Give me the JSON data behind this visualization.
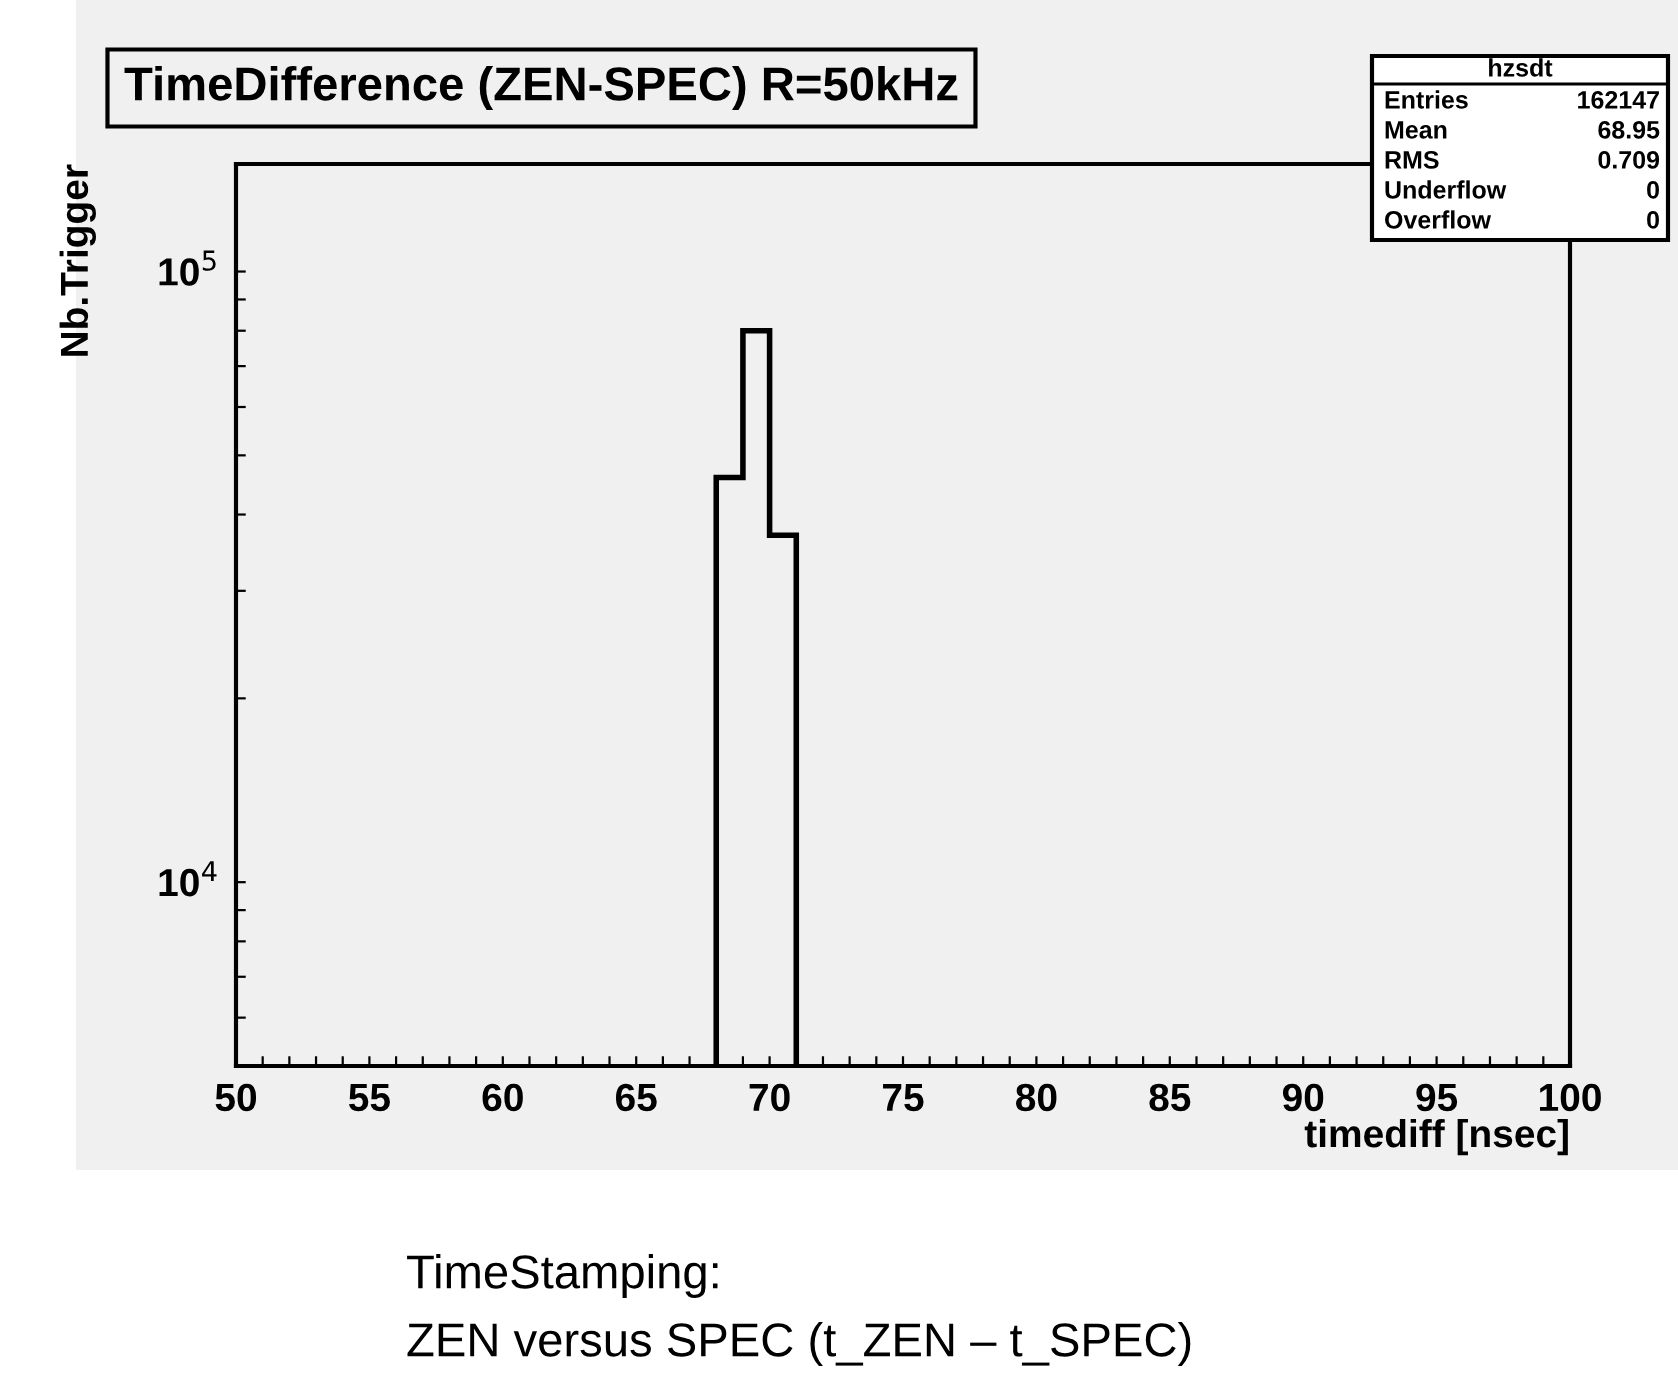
{
  "chart_data": {
    "type": "histogram",
    "title": "TimeDifference (ZEN-SPEC) R=50kHz",
    "xlabel": "timediff [nsec]",
    "ylabel": "Nb.Trigger",
    "bins": [
      68,
      69,
      70,
      71
    ],
    "values": [
      46000,
      80000,
      37000
    ],
    "color": "#000000",
    "log": "y",
    "grid": false,
    "xlim": [
      50,
      100
    ],
    "ylim": [
      5000,
      150000
    ],
    "xticks": [
      50,
      {
        "value": 51,
        "label": null
      },
      {
        "value": 52,
        "label": null
      },
      {
        "value": 53,
        "label": null
      },
      {
        "value": 54,
        "label": null
      },
      55,
      {
        "value": 56,
        "label": null
      },
      {
        "value": 57,
        "label": null
      },
      {
        "value": 58,
        "label": null
      },
      {
        "value": 59,
        "label": null
      },
      60,
      {
        "value": 61,
        "label": null
      },
      {
        "value": 62,
        "label": null
      },
      {
        "value": 63,
        "label": null
      },
      {
        "value": 64,
        "label": null
      },
      65,
      {
        "value": 66,
        "label": null
      },
      {
        "value": 67,
        "label": null
      },
      {
        "value": 68,
        "label": null
      },
      {
        "value": 69,
        "label": null
      },
      70,
      {
        "value": 71,
        "label": null
      },
      {
        "value": 72,
        "label": null
      },
      {
        "value": 73,
        "label": null
      },
      {
        "value": 74,
        "label": null
      },
      75,
      {
        "value": 76,
        "label": null
      },
      {
        "value": 77,
        "label": null
      },
      {
        "value": 78,
        "label": null
      },
      {
        "value": 79,
        "label": null
      },
      80,
      {
        "value": 81,
        "label": null
      },
      {
        "value": 82,
        "label": null
      },
      {
        "value": 83,
        "label": null
      },
      {
        "value": 84,
        "label": null
      },
      85,
      {
        "value": 86,
        "label": null
      },
      {
        "value": 87,
        "label": null
      },
      {
        "value": 88,
        "label": null
      },
      {
        "value": 89,
        "label": null
      },
      90,
      {
        "value": 91,
        "label": null
      },
      {
        "value": 92,
        "label": null
      },
      {
        "value": 93,
        "label": null
      },
      {
        "value": 94,
        "label": null
      },
      95,
      {
        "value": 96,
        "label": null
      },
      {
        "value": 97,
        "label": null
      },
      {
        "value": 98,
        "label": null
      },
      {
        "value": 99,
        "label": null
      },
      100
    ],
    "yticks": [
      {
        "value": 6000,
        "label": null
      },
      {
        "value": 7000,
        "label": null
      },
      {
        "value": 8000,
        "label": null
      },
      {
        "value": 9000,
        "label": null
      },
      {
        "value": 10000,
        "label": "10$^{4}$"
      },
      {
        "value": 20000,
        "label": null
      },
      {
        "value": 30000,
        "label": null
      },
      {
        "value": 40000,
        "label": null
      },
      {
        "value": 50000,
        "label": null
      },
      {
        "value": 60000,
        "label": null
      },
      {
        "value": 70000,
        "label": null
      },
      {
        "value": 80000,
        "label": null
      },
      {
        "value": 90000,
        "label": null
      },
      {
        "value": 100000,
        "label": "10$^{5}$"
      }
    ],
    "annotations": [
      "hzsdt",
      "Entries",
      "162147",
      "Mean",
      "68.95",
      "RMS",
      "0.709",
      "Underflow",
      "0",
      "Overflow",
      "0",
      "TimeStamping:",
      "ZEN versus SPEC (t_ZEN – t_SPEC)"
    ]
  }
}
